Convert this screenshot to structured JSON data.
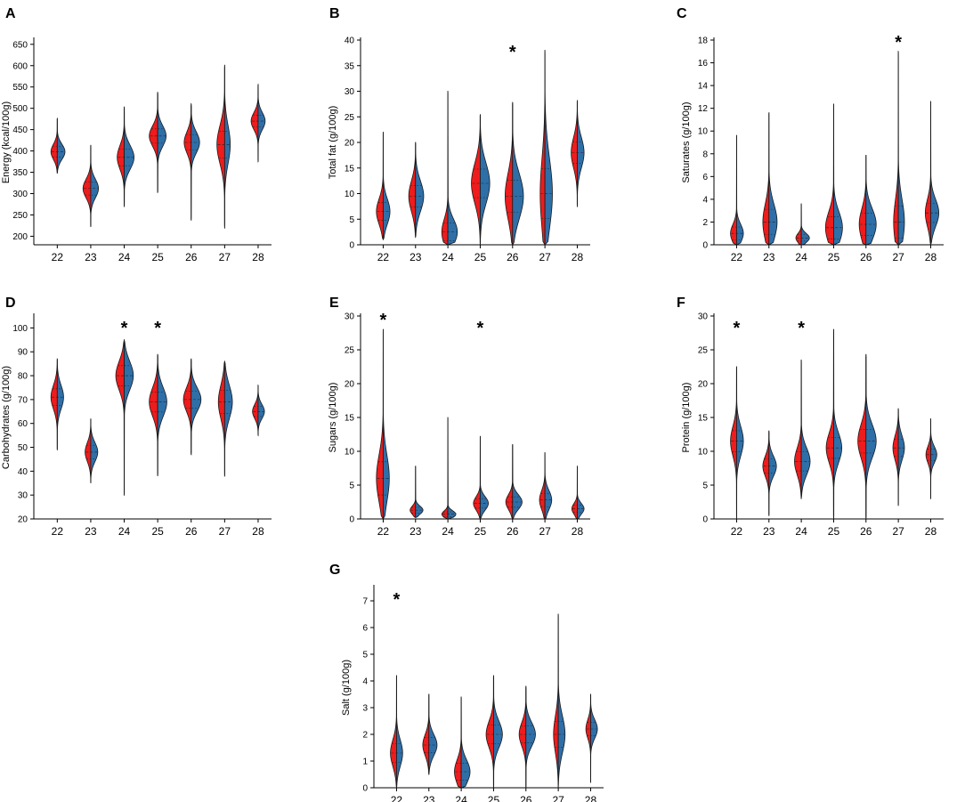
{
  "figure": {
    "colors": {
      "left_half": "#ee1c1c",
      "right_half": "#2f6fa8",
      "outline": "#1a1a1a",
      "median": "#222222"
    }
  },
  "chart_data": [
    {
      "panel": "A",
      "type": "violin-split",
      "ylabel": "Energy (kcal/100g)",
      "ylim": [
        180,
        660
      ],
      "yticks": [
        200,
        250,
        300,
        350,
        400,
        450,
        500,
        550,
        600,
        650
      ],
      "categories": [
        "22",
        "23",
        "24",
        "25",
        "26",
        "27",
        "28"
      ],
      "min": [
        348,
        222,
        270,
        302,
        238,
        220,
        375
      ],
      "max": [
        476,
        414,
        503,
        538,
        510,
        601,
        556
      ],
      "mode": [
        398,
        312,
        385,
        435,
        420,
        415,
        470
      ],
      "spread": [
        18,
        22,
        28,
        24,
        25,
        45,
        20
      ],
      "width_left": [
        0.45,
        0.55,
        0.5,
        0.6,
        0.5,
        0.55,
        0.5
      ],
      "width_right": [
        0.55,
        0.55,
        0.7,
        0.6,
        0.6,
        0.4,
        0.5
      ],
      "significant": []
    },
    {
      "panel": "B",
      "type": "violin-split",
      "ylabel": "Total fat (g/100g)",
      "ylim": [
        0,
        40
      ],
      "yticks": [
        0,
        5,
        10,
        15,
        20,
        25,
        30,
        35,
        40
      ],
      "categories": [
        "22",
        "23",
        "24",
        "25",
        "26",
        "27",
        "28"
      ],
      "min": [
        1.0,
        1.5,
        0.0,
        0.0,
        0.0,
        0.0,
        7.5
      ],
      "max": [
        22.0,
        20.0,
        30.0,
        25.5,
        27.8,
        38.0,
        28.2
      ],
      "mode": [
        6.5,
        9.5,
        2.5,
        12.0,
        9.5,
        10.0,
        18.0
      ],
      "spread": [
        2.5,
        3.0,
        2.5,
        4.0,
        4.5,
        7.0,
        3.0
      ],
      "width_left": [
        0.5,
        0.5,
        0.45,
        0.65,
        0.55,
        0.35,
        0.45
      ],
      "width_right": [
        0.5,
        0.6,
        0.7,
        0.7,
        0.8,
        0.55,
        0.5
      ],
      "significant": [
        "26"
      ]
    },
    {
      "panel": "C",
      "type": "violin-split",
      "ylabel": "Saturates (g/100g)",
      "ylim": [
        0,
        18
      ],
      "yticks": [
        0,
        2,
        4,
        6,
        8,
        10,
        12,
        14,
        16,
        18
      ],
      "categories": [
        "22",
        "23",
        "24",
        "25",
        "26",
        "27",
        "28"
      ],
      "min": [
        0.0,
        0.0,
        0.0,
        0.0,
        0.0,
        0.0,
        0.0
      ],
      "max": [
        9.6,
        11.6,
        3.6,
        12.4,
        7.9,
        17.0,
        12.6
      ],
      "mode": [
        1.0,
        2.0,
        0.6,
        1.5,
        1.8,
        2.0,
        2.8
      ],
      "spread": [
        0.8,
        1.6,
        0.4,
        1.4,
        1.4,
        2.0,
        1.2
      ],
      "width_left": [
        0.45,
        0.45,
        0.4,
        0.6,
        0.5,
        0.35,
        0.4
      ],
      "width_right": [
        0.5,
        0.6,
        0.6,
        0.65,
        0.75,
        0.45,
        0.6
      ],
      "significant": [
        "27"
      ]
    },
    {
      "panel": "D",
      "type": "violin-split",
      "ylabel": "Carbohydrates (g/100g)",
      "ylim": [
        20,
        105
      ],
      "yticks": [
        20,
        30,
        40,
        50,
        60,
        70,
        80,
        90,
        100
      ],
      "categories": [
        "22",
        "23",
        "24",
        "25",
        "26",
        "27",
        "28"
      ],
      "min": [
        49,
        35,
        30,
        38,
        47,
        38,
        55
      ],
      "max": [
        87,
        62,
        95,
        89,
        87,
        86,
        76
      ],
      "mode": [
        71,
        48,
        80,
        69,
        70,
        69,
        65
      ],
      "spread": [
        5,
        4,
        6,
        6,
        5,
        7,
        3
      ],
      "width_left": [
        0.45,
        0.4,
        0.6,
        0.6,
        0.55,
        0.45,
        0.4
      ],
      "width_right": [
        0.45,
        0.5,
        0.65,
        0.65,
        0.7,
        0.55,
        0.45
      ],
      "significant": [
        "24",
        "25"
      ]
    },
    {
      "panel": "E",
      "type": "violin-split",
      "ylabel": "Sugars (g/100g)",
      "ylim": [
        0,
        30
      ],
      "yticks": [
        0,
        5,
        10,
        15,
        20,
        25,
        30
      ],
      "categories": [
        "22",
        "23",
        "24",
        "25",
        "26",
        "27",
        "28"
      ],
      "min": [
        0.0,
        0.2,
        0.0,
        0.0,
        0.0,
        0.0,
        0.0
      ],
      "max": [
        28.0,
        7.8,
        15.0,
        12.2,
        11.0,
        9.8,
        7.8
      ],
      "mode": [
        6.0,
        1.3,
        0.7,
        2.3,
        2.5,
        2.8,
        1.5
      ],
      "spread": [
        3.5,
        0.6,
        0.5,
        1.0,
        1.1,
        1.4,
        0.8
      ],
      "width_left": [
        0.5,
        0.4,
        0.45,
        0.5,
        0.5,
        0.4,
        0.4
      ],
      "width_right": [
        0.45,
        0.55,
        0.6,
        0.6,
        0.7,
        0.5,
        0.5
      ],
      "significant": [
        "22",
        "25"
      ]
    },
    {
      "panel": "F",
      "type": "violin-split",
      "ylabel": "Protein (g/100g)",
      "ylim": [
        0,
        30
      ],
      "yticks": [
        0,
        5,
        10,
        15,
        20,
        25,
        30
      ],
      "categories": [
        "22",
        "23",
        "24",
        "25",
        "26",
        "27",
        "28"
      ],
      "min": [
        0.0,
        0.5,
        3.0,
        0.0,
        0.0,
        2.0,
        3.0
      ],
      "max": [
        22.5,
        13.0,
        23.5,
        28.0,
        24.3,
        16.3,
        14.8
      ],
      "mode": [
        11.5,
        7.8,
        8.5,
        10.5,
        11.5,
        10.5,
        9.5
      ],
      "spread": [
        2.2,
        1.5,
        2.0,
        2.2,
        2.5,
        1.8,
        1.2
      ],
      "width_left": [
        0.45,
        0.45,
        0.5,
        0.55,
        0.6,
        0.4,
        0.35
      ],
      "width_right": [
        0.5,
        0.55,
        0.65,
        0.6,
        0.75,
        0.45,
        0.45
      ],
      "significant": [
        "22",
        "24"
      ]
    },
    {
      "panel": "G",
      "type": "violin-split",
      "ylabel": "Salt (g/100g)",
      "ylim": [
        0,
        7.5
      ],
      "yticks": [
        0,
        1,
        2,
        3,
        4,
        5,
        6,
        7
      ],
      "categories": [
        "22",
        "23",
        "24",
        "25",
        "26",
        "27",
        "28"
      ],
      "min": [
        0.0,
        0.5,
        0.0,
        0.0,
        0.0,
        0.0,
        0.2
      ],
      "max": [
        4.2,
        3.5,
        3.4,
        4.2,
        3.8,
        6.5,
        3.5
      ],
      "mode": [
        1.3,
        1.6,
        0.6,
        2.0,
        2.0,
        2.0,
        2.2
      ],
      "spread": [
        0.5,
        0.4,
        0.45,
        0.5,
        0.45,
        0.7,
        0.35
      ],
      "width_left": [
        0.45,
        0.45,
        0.5,
        0.55,
        0.5,
        0.35,
        0.35
      ],
      "width_right": [
        0.45,
        0.6,
        0.65,
        0.65,
        0.7,
        0.5,
        0.5
      ],
      "significant": [
        "22"
      ]
    }
  ]
}
